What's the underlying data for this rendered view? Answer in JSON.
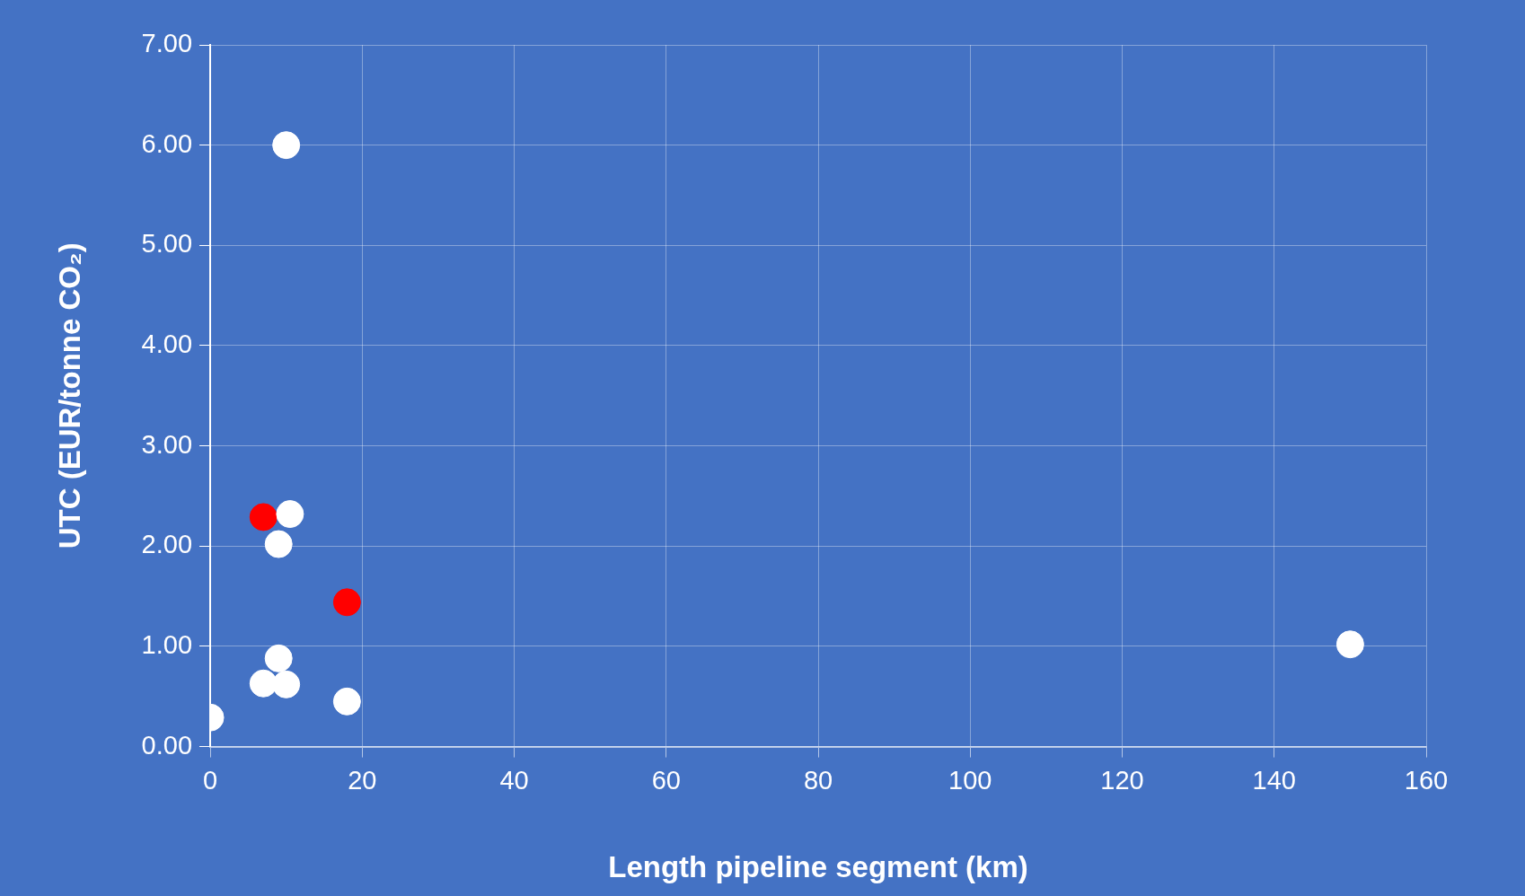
{
  "chart_data": {
    "type": "scatter",
    "xlabel": "Length pipeline segment (km)",
    "ylabel": "UTC (EUR/tonne CO₂)",
    "series": [
      {
        "color": "#ffffff",
        "x": [
          10,
          10.5,
          9,
          9,
          7,
          10,
          18,
          0,
          150
        ],
        "values": [
          6.0,
          2.32,
          2.02,
          0.88,
          0.63,
          0.62,
          0.45,
          0.29,
          1.02
        ]
      },
      {
        "color": "#ff0000",
        "x": [
          7,
          18
        ],
        "values": [
          2.29,
          1.44
        ]
      }
    ],
    "xlim": [
      0,
      160
    ],
    "xticks": [
      0,
      20,
      40,
      60,
      80,
      100,
      120,
      140,
      160
    ],
    "ylim": [
      0,
      7
    ],
    "yticks": [
      {
        "value": 0,
        "label": "0.00"
      },
      {
        "value": 1,
        "label": "1.00"
      },
      {
        "value": 2,
        "label": "2.00"
      },
      {
        "value": 3,
        "label": "3.00"
      },
      {
        "value": 4,
        "label": "4.00"
      },
      {
        "value": 5,
        "label": "5.00"
      },
      {
        "value": 6,
        "label": "6.00"
      },
      {
        "value": 7,
        "label": "7.00"
      }
    ],
    "grid": true,
    "marker": "circle",
    "legend": false
  }
}
